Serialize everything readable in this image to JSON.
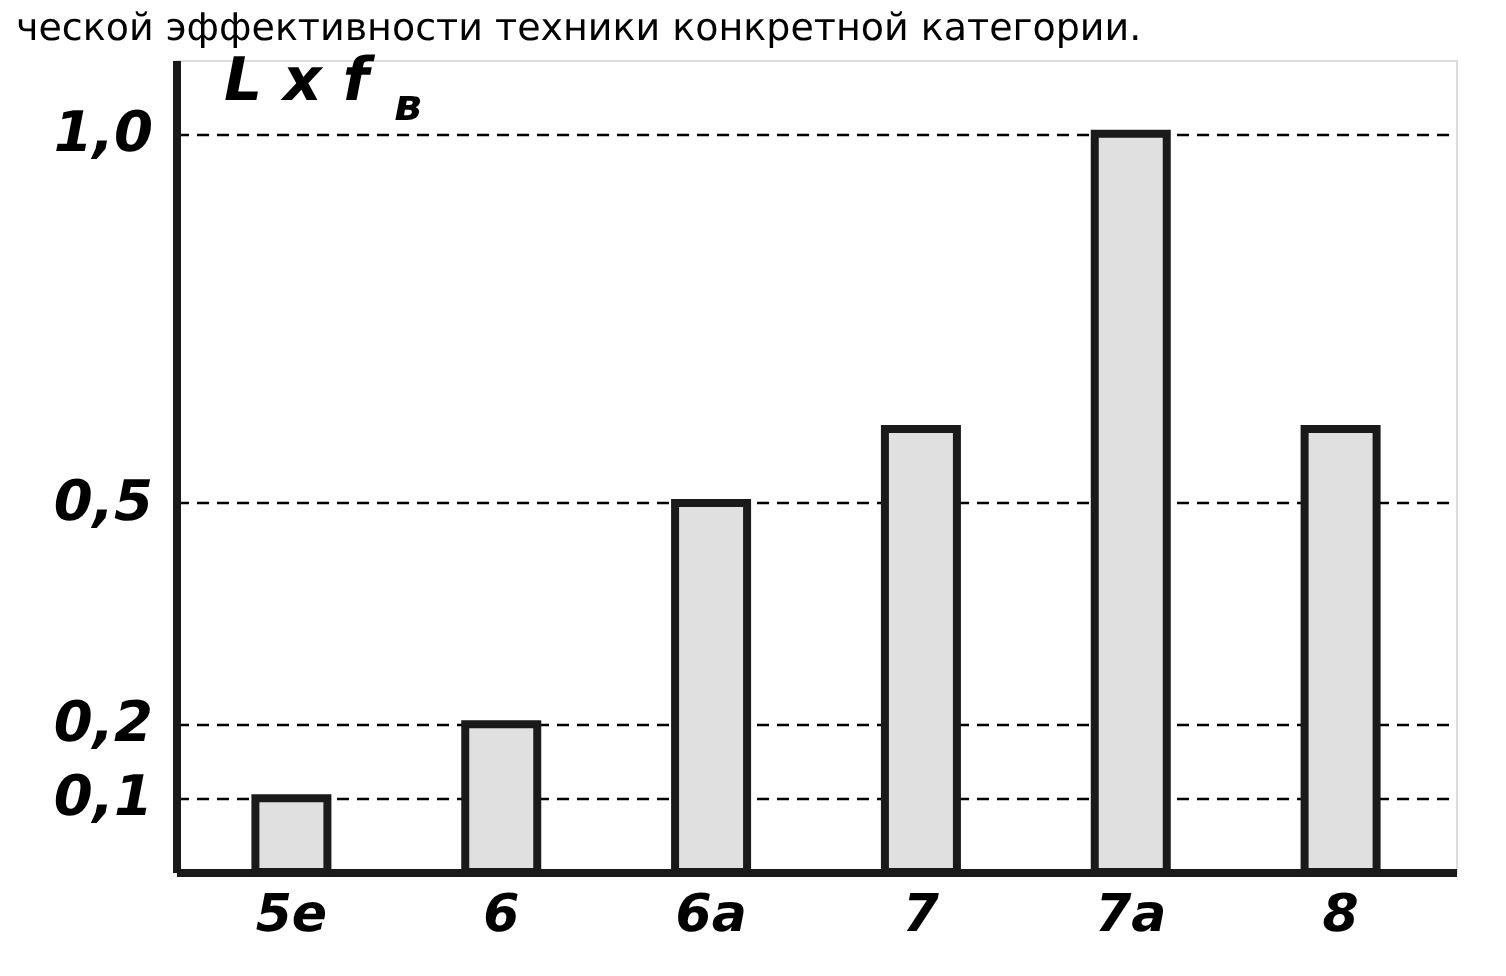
{
  "chart_data": {
    "type": "bar",
    "title": "ческой эффективности техники конкретной категории.",
    "ylabel": "L x f$_{в}$",
    "categories": [
      "5е",
      "6",
      "6а",
      "7",
      "7а",
      "8"
    ],
    "values": [
      0.1,
      0.2,
      0.5,
      0.6,
      1.0,
      0.6
    ],
    "color": "#e0e0e0",
    "ylim": [
      0,
      1.1
    ],
    "yticks": [
      {
        "value": 0.1,
        "label": "0,1"
      },
      {
        "value": 0.2,
        "label": "0,2"
      },
      {
        "value": 0.5,
        "label": "0,5"
      },
      {
        "value": 1.0,
        "label": "1,0"
      }
    ],
    "grid": "y"
  }
}
